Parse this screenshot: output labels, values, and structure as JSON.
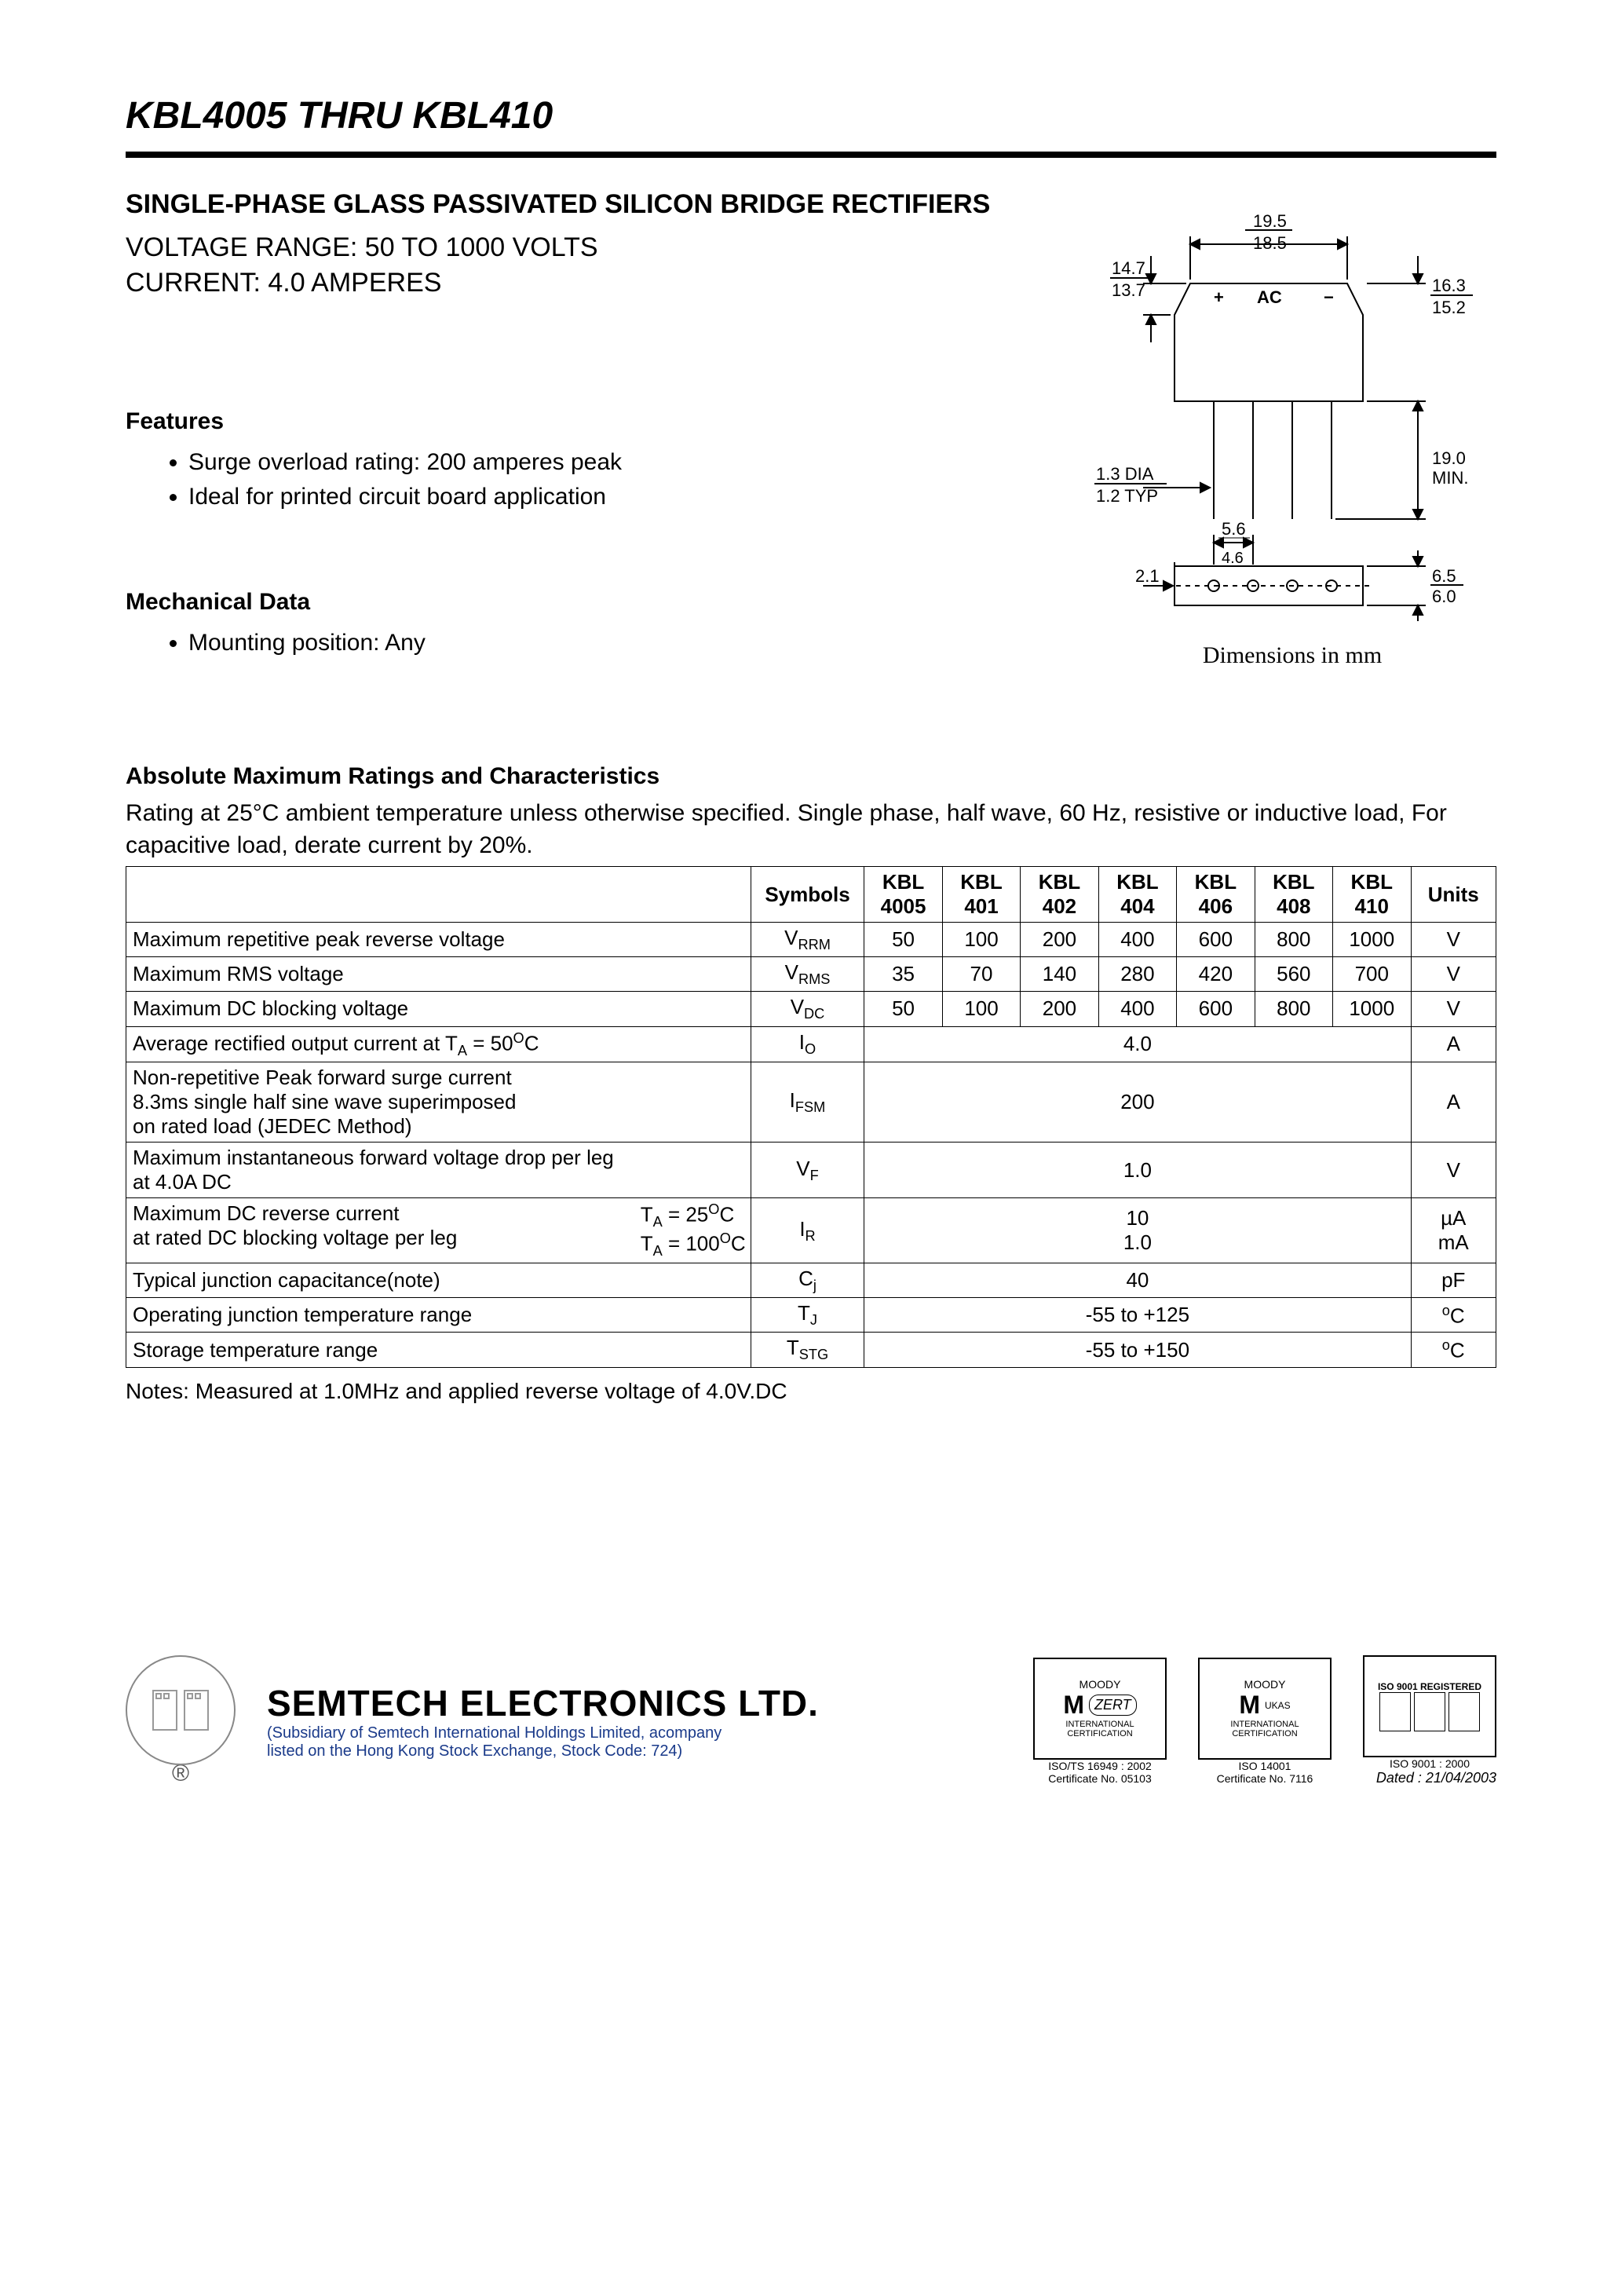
{
  "title": "KBL4005 THRU KBL410",
  "subtitle": "SINGLE-PHASE GLASS PASSIVATED SILICON BRIDGE RECTIFIERS",
  "voltage_range": "VOLTAGE RANGE: 50 TO 1000 VOLTS",
  "current": "CURRENT: 4.0 AMPERES",
  "features_heading": "Features",
  "features": [
    "Surge overload rating: 200 amperes peak",
    "Ideal for printed circuit board application"
  ],
  "mech_heading": "Mechanical Data",
  "mech_items": [
    "Mounting position: Any"
  ],
  "figure": {
    "dims": {
      "width_top": "19.5",
      "width_bot": "18.5",
      "height_top": "14.7",
      "height_bot": "13.7",
      "body_h_top": "16.3",
      "body_h_bot": "15.2",
      "lead_len": "19.0",
      "lead_len_sub": "MIN.",
      "lead_dia_top": "1.3 DIA",
      "lead_dia_bot": "1.2 TYP",
      "pl_top_left": "2.1",
      "pl_pitch_top": "5.6",
      "pl_pitch_bot": "4.6",
      "pl_h_top": "6.5",
      "pl_h_bot": "6.0",
      "ac_label": "AC",
      "plus": "+",
      "minus": "−"
    },
    "caption": "Dimensions in mm"
  },
  "ratings_heading": "Absolute Maximum Ratings and Characteristics",
  "ratings_note": "Rating at 25°C ambient temperature unless otherwise specified. Single phase, half wave, 60 Hz, resistive or inductive load, For capacitive load, derate current by 20%.",
  "table": {
    "symbol_header": "Symbols",
    "units_header": "Units",
    "kbl_prefix": "KBL",
    "models": [
      "4005",
      "401",
      "402",
      "404",
      "406",
      "408",
      "410"
    ],
    "rows": [
      {
        "param": "Maximum repetitive peak reverse voltage",
        "sym_base": "V",
        "sym_sub": "RRM",
        "vals": [
          "50",
          "100",
          "200",
          "400",
          "600",
          "800",
          "1000"
        ],
        "units": "V"
      },
      {
        "param": "Maximum RMS voltage",
        "sym_base": "V",
        "sym_sub": "RMS",
        "vals": [
          "35",
          "70",
          "140",
          "280",
          "420",
          "560",
          "700"
        ],
        "units": "V"
      },
      {
        "param": "Maximum DC blocking voltage",
        "sym_base": "V",
        "sym_sub": "DC",
        "vals": [
          "50",
          "100",
          "200",
          "400",
          "600",
          "800",
          "1000"
        ],
        "units": "V"
      },
      {
        "param_html": "Average rectified output current at T<sub>A</sub> = 50<sup>O</sup>C",
        "sym_base": "I",
        "sym_sub": "O",
        "span": "4.0",
        "units": "A"
      },
      {
        "param_html": "Non-repetitive Peak forward surge current<br>8.3ms single half sine wave superimposed<br>on rated load (JEDEC Method)",
        "sym_base": "I",
        "sym_sub": "FSM",
        "span": "200",
        "units": "A"
      },
      {
        "param_html": "Maximum instantaneous forward voltage drop per leg<br>at 4.0A DC",
        "sym_base": "V",
        "sym_sub": "F",
        "span": "1.0",
        "units": "V"
      },
      {
        "param_split_left": "Maximum DC reverse current<br>at rated DC blocking voltage per leg",
        "param_split_right": "T<sub>A</sub> = 25<sup>O</sup>C<br>T<sub>A</sub> = 100<sup>O</sup>C",
        "sym_base": "I",
        "sym_sub": "R",
        "span_html": "10<br>1.0",
        "units_html": "µA<br>mA"
      },
      {
        "param": "Typical junction capacitance(note)",
        "sym_base": "C",
        "sym_sub": "j",
        "span": "40",
        "units": "pF"
      },
      {
        "param": "Operating junction temperature range",
        "sym_base": "T",
        "sym_sub": "J",
        "span": "-55 to +125",
        "units_html": "<sup>o</sup>C"
      },
      {
        "param": "Storage temperature range",
        "sym_base": "T",
        "sym_sub": "STG",
        "span": "-55 to +150",
        "units_html": "<sup>o</sup>C"
      }
    ]
  },
  "table_note": "Notes: Measured at 1.0MHz and applied reverse voltage of 4.0V.DC",
  "footer": {
    "company": "SEMTECH ELECTRONICS LTD.",
    "sub1": "(Subsidiary of Semtech International Holdings Limited, acompany",
    "sub2": "listed on the Hong Kong Stock Exchange, Stock Code: 724)",
    "cert1": {
      "top": "MOODY",
      "big": "M",
      "mid": "INTERNATIONAL CERTIFICATION",
      "line": "ISO/TS 16949 : 2002",
      "line2": "Certificate No. 05103",
      "side": "ZERT"
    },
    "cert2": {
      "top": "MOODY",
      "big": "M",
      "mid": "INTERNATIONAL CERTIFICATION",
      "line": "ISO 14001",
      "line2": "Certificate No. 7116",
      "side": "UKAS"
    },
    "cert3": {
      "top": "ISO 9001 REGISTERED",
      "line": "ISO 9001 : 2000"
    },
    "dated": "Dated : 21/04/2003",
    "reg": "®"
  },
  "colors": {
    "text": "#000000",
    "bg": "#ffffff",
    "rule": "#000000",
    "footer_blue": "#1a3a8a"
  }
}
